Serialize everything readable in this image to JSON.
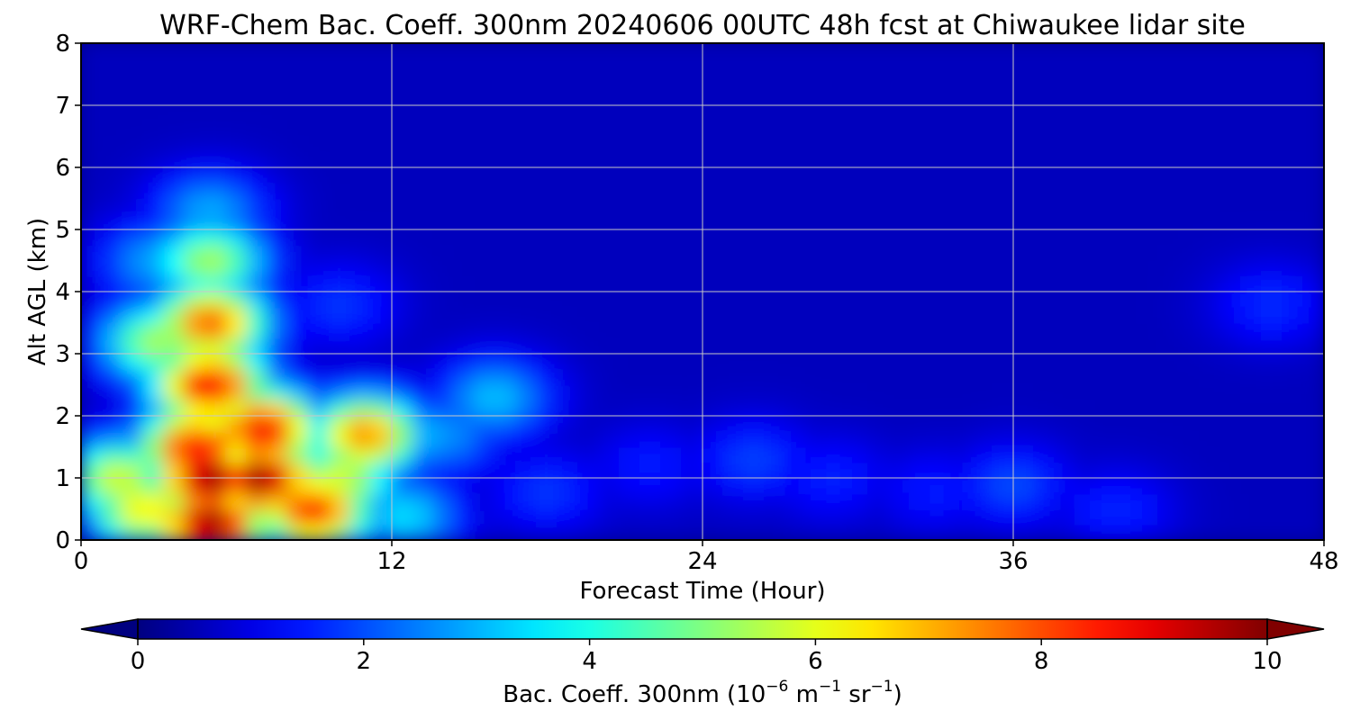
{
  "chart_data": {
    "type": "heatmap",
    "title": "WRF-Chem Bac. Coeff. 300nm  20240606 00UTC 48h fcst at Chiwaukee lidar site",
    "xlabel": "Forecast Time (Hour)",
    "ylabel": "Alt AGL (km)",
    "xlim": [
      0,
      48
    ],
    "ylim": [
      0,
      8
    ],
    "xticks": [
      0,
      12,
      24,
      36,
      48
    ],
    "yticks": [
      0,
      1,
      2,
      3,
      4,
      5,
      6,
      7,
      8
    ],
    "grid": true,
    "colormap": "jet",
    "colorbar": {
      "label_main": "Bac. Coeff. 300nm  (10",
      "label_exp1": "−6",
      "label_m": " m",
      "label_exp2": "−1",
      "label_sr": " sr",
      "label_exp3": "−1",
      "label_close": ")",
      "range": [
        0,
        10
      ],
      "ticks": [
        0,
        2,
        4,
        6,
        8,
        10
      ],
      "extend": "both",
      "orientation": "horizontal"
    },
    "features": [
      {
        "x": 5.0,
        "y": 0.3,
        "value": 10.0
      },
      {
        "x": 5.0,
        "y": 1.0,
        "value": 10.0
      },
      {
        "x": 4.5,
        "y": 1.5,
        "value": 9.0
      },
      {
        "x": 7.0,
        "y": 1.0,
        "value": 10.0
      },
      {
        "x": 7.0,
        "y": 1.8,
        "value": 9.0
      },
      {
        "x": 5.0,
        "y": 2.5,
        "value": 9.0
      },
      {
        "x": 5.0,
        "y": 3.5,
        "value": 8.0
      },
      {
        "x": 5.0,
        "y": 4.5,
        "value": 5.5
      },
      {
        "x": 5.0,
        "y": 5.3,
        "value": 3.0
      },
      {
        "x": 3.0,
        "y": 3.2,
        "value": 5.5
      },
      {
        "x": 3.0,
        "y": 4.5,
        "value": 3.0
      },
      {
        "x": 1.5,
        "y": 1.0,
        "value": 6.0
      },
      {
        "x": 2.5,
        "y": 0.5,
        "value": 6.5
      },
      {
        "x": 9.0,
        "y": 0.5,
        "value": 8.5
      },
      {
        "x": 10.0,
        "y": 1.0,
        "value": 6.0
      },
      {
        "x": 11.0,
        "y": 1.7,
        "value": 7.5
      },
      {
        "x": 12.5,
        "y": 0.4,
        "value": 3.5
      },
      {
        "x": 14.0,
        "y": 1.7,
        "value": 2.8
      },
      {
        "x": 16.0,
        "y": 2.3,
        "value": 3.2
      },
      {
        "x": 10.0,
        "y": 3.8,
        "value": 1.8
      },
      {
        "x": 18.0,
        "y": 0.8,
        "value": 1.8
      },
      {
        "x": 22.0,
        "y": 1.2,
        "value": 1.5
      },
      {
        "x": 26.0,
        "y": 1.3,
        "value": 1.9
      },
      {
        "x": 29.0,
        "y": 1.0,
        "value": 1.6
      },
      {
        "x": 33.0,
        "y": 0.8,
        "value": 1.5
      },
      {
        "x": 36.0,
        "y": 0.9,
        "value": 2.0
      },
      {
        "x": 40.0,
        "y": 0.5,
        "value": 1.6
      },
      {
        "x": 46.0,
        "y": 3.8,
        "value": 1.7
      },
      {
        "x": 30.0,
        "y": 6.0,
        "value": 0.3
      },
      {
        "x": 40.0,
        "y": 5.5,
        "value": 0.4
      }
    ]
  }
}
